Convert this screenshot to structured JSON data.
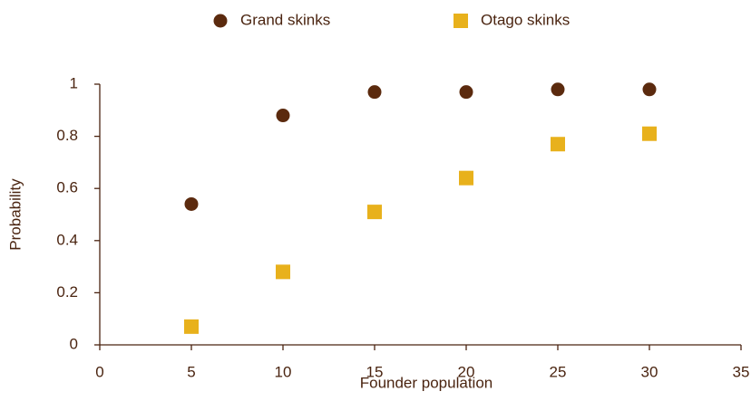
{
  "chart_data": {
    "type": "scatter",
    "x_label": "Founder population",
    "y_label": "Probability",
    "xlim": [
      0,
      35
    ],
    "xticks": [
      0,
      5,
      10,
      15,
      20,
      25,
      30,
      35
    ],
    "ylim": [
      0,
      1
    ],
    "yticks": [
      0,
      0.2,
      0.4,
      0.6,
      0.8,
      1
    ],
    "legend": "top",
    "series": [
      {
        "name": "Grand skinks",
        "color": "#5b2a0e",
        "marker": "circle",
        "x": [
          5,
          10,
          15,
          20,
          25,
          30
        ],
        "values": [
          0.54,
          0.88,
          0.97,
          0.97,
          0.98,
          0.98
        ]
      },
      {
        "name": "Otago skinks",
        "color": "#e8b11c",
        "marker": "square",
        "x": [
          5,
          10,
          15,
          20,
          25,
          30
        ],
        "values": [
          0.07,
          0.28,
          0.51,
          0.64,
          0.77,
          0.81
        ]
      }
    ]
  }
}
